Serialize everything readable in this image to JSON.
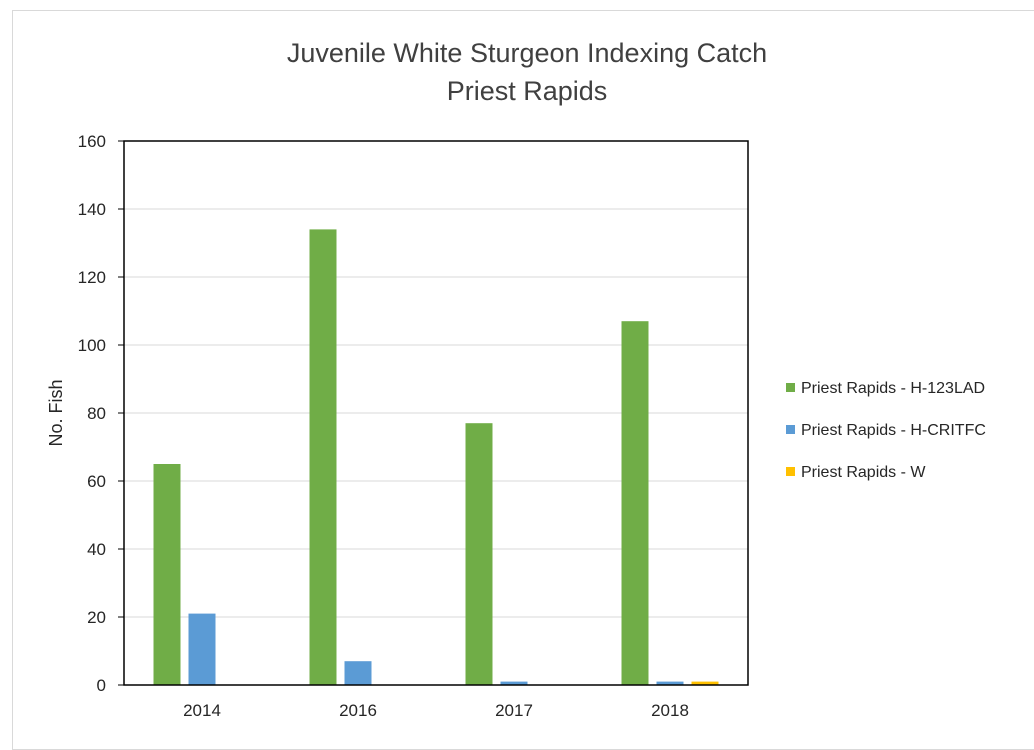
{
  "chart_data": {
    "type": "bar",
    "title": "Juvenile White Sturgeon Indexing Catch",
    "subtitle": "Priest Rapids",
    "xlabel": "",
    "ylabel": "No. Fish",
    "categories": [
      "2014",
      "2016",
      "2017",
      "2018"
    ],
    "series": [
      {
        "name": "Priest Rapids - H-123LAD",
        "color": "#70ad47",
        "values": [
          65,
          134,
          77,
          107
        ]
      },
      {
        "name": "Priest Rapids - H-CRITFC",
        "color": "#5b9bd5",
        "values": [
          21,
          7,
          1,
          1
        ]
      },
      {
        "name": "Priest Rapids - W",
        "color": "#ffc000",
        "values": [
          0,
          0,
          0,
          1
        ]
      }
    ],
    "ylim": [
      0,
      160
    ],
    "yticks": [
      0,
      20,
      40,
      60,
      80,
      100,
      120,
      140,
      160
    ],
    "grid": true,
    "legend_position": "right"
  }
}
